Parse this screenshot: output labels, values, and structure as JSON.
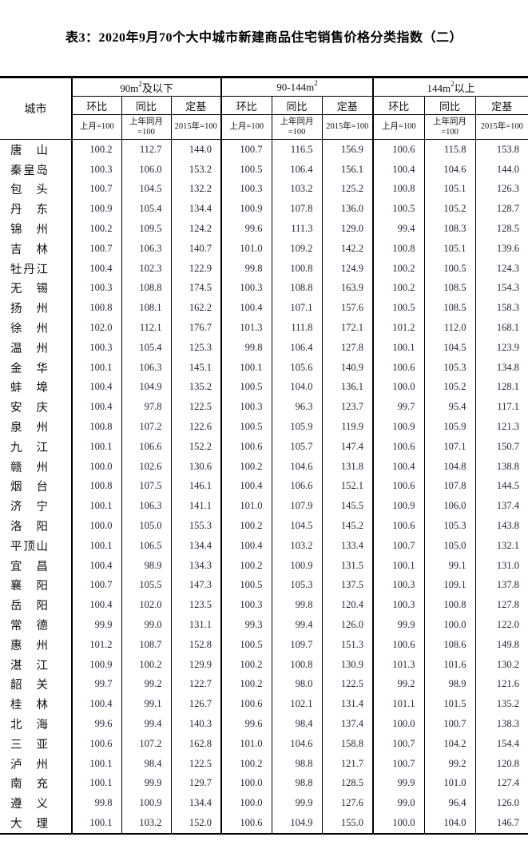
{
  "page": {
    "title": "表3：2020年9月70个大中城市新建商品住宅销售价格分类指数（二）"
  },
  "table": {
    "corner_header": "城市",
    "groups": [
      {
        "pre": "90m",
        "sup": "2",
        "post": "及以下"
      },
      {
        "pre": "90-144m",
        "sup": "2",
        "post": ""
      },
      {
        "pre": "144m",
        "sup": "2",
        "post": "以上"
      }
    ],
    "sub_headers": [
      {
        "kind": "环比",
        "base_l1": "上月=100",
        "base_l2": ""
      },
      {
        "kind": "同比",
        "base_l1": "上年同月",
        "base_l2": "=100"
      },
      {
        "kind": "定基",
        "base_l1": "2015年=100",
        "base_l2": ""
      }
    ],
    "rows": [
      {
        "city": "唐山",
        "values": [
          "100.2",
          "112.7",
          "144.0",
          "100.7",
          "116.5",
          "156.9",
          "100.6",
          "115.8",
          "153.8"
        ]
      },
      {
        "city": "秦皇岛",
        "values": [
          "100.3",
          "106.0",
          "153.2",
          "100.5",
          "106.4",
          "156.1",
          "100.4",
          "104.6",
          "144.0"
        ]
      },
      {
        "city": "包头",
        "values": [
          "100.7",
          "104.5",
          "132.2",
          "100.3",
          "103.2",
          "125.2",
          "100.8",
          "105.1",
          "126.3"
        ]
      },
      {
        "city": "丹东",
        "values": [
          "100.9",
          "105.4",
          "134.4",
          "100.9",
          "107.8",
          "136.0",
          "100.5",
          "105.2",
          "128.7"
        ]
      },
      {
        "city": "锦州",
        "values": [
          "100.2",
          "109.5",
          "124.2",
          "99.6",
          "111.3",
          "129.0",
          "99.4",
          "108.3",
          "128.5"
        ]
      },
      {
        "city": "吉林",
        "values": [
          "100.7",
          "106.3",
          "140.7",
          "101.0",
          "109.2",
          "142.2",
          "100.8",
          "105.1",
          "139.6"
        ]
      },
      {
        "city": "牡丹江",
        "values": [
          "100.4",
          "102.3",
          "122.9",
          "99.8",
          "100.8",
          "124.9",
          "100.2",
          "100.5",
          "124.3"
        ]
      },
      {
        "city": "无锡",
        "values": [
          "100.3",
          "108.8",
          "174.5",
          "100.3",
          "108.8",
          "163.9",
          "100.2",
          "108.5",
          "154.3"
        ]
      },
      {
        "city": "扬州",
        "values": [
          "100.8",
          "108.1",
          "162.2",
          "100.4",
          "107.1",
          "157.6",
          "100.5",
          "108.5",
          "158.3"
        ]
      },
      {
        "city": "徐州",
        "values": [
          "102.0",
          "112.1",
          "176.7",
          "101.3",
          "111.8",
          "172.1",
          "101.2",
          "112.0",
          "168.1"
        ]
      },
      {
        "city": "温州",
        "values": [
          "100.3",
          "105.4",
          "125.3",
          "99.8",
          "106.4",
          "127.8",
          "100.1",
          "104.5",
          "123.9"
        ]
      },
      {
        "city": "金华",
        "values": [
          "100.1",
          "106.3",
          "145.1",
          "100.1",
          "105.6",
          "140.9",
          "100.6",
          "105.3",
          "134.8"
        ]
      },
      {
        "city": "蚌埠",
        "values": [
          "100.4",
          "104.9",
          "135.2",
          "100.5",
          "104.0",
          "136.1",
          "100.0",
          "105.2",
          "128.1"
        ]
      },
      {
        "city": "安庆",
        "values": [
          "100.4",
          "97.8",
          "122.5",
          "100.3",
          "96.3",
          "123.7",
          "99.7",
          "95.4",
          "117.1"
        ]
      },
      {
        "city": "泉州",
        "values": [
          "100.8",
          "107.2",
          "122.6",
          "100.5",
          "105.9",
          "119.9",
          "100.9",
          "105.9",
          "121.3"
        ]
      },
      {
        "city": "九江",
        "values": [
          "100.1",
          "106.6",
          "152.2",
          "100.6",
          "105.7",
          "147.4",
          "100.6",
          "107.1",
          "150.7"
        ]
      },
      {
        "city": "赣州",
        "values": [
          "100.0",
          "102.6",
          "130.6",
          "100.2",
          "104.6",
          "131.8",
          "100.4",
          "104.8",
          "138.8"
        ]
      },
      {
        "city": "烟台",
        "values": [
          "100.8",
          "107.5",
          "146.1",
          "100.4",
          "106.6",
          "152.1",
          "100.6",
          "107.8",
          "144.5"
        ]
      },
      {
        "city": "济宁",
        "values": [
          "100.1",
          "106.3",
          "141.1",
          "101.0",
          "107.9",
          "145.5",
          "100.9",
          "106.0",
          "137.4"
        ]
      },
      {
        "city": "洛阳",
        "values": [
          "100.0",
          "105.0",
          "155.3",
          "100.2",
          "104.5",
          "145.2",
          "100.6",
          "105.3",
          "143.8"
        ]
      },
      {
        "city": "平顶山",
        "values": [
          "100.1",
          "106.5",
          "134.4",
          "100.4",
          "103.2",
          "133.4",
          "100.7",
          "105.0",
          "132.1"
        ]
      },
      {
        "city": "宜昌",
        "values": [
          "100.4",
          "98.9",
          "134.3",
          "100.2",
          "100.9",
          "131.5",
          "100.1",
          "99.1",
          "131.0"
        ]
      },
      {
        "city": "襄阳",
        "values": [
          "100.7",
          "105.5",
          "147.3",
          "100.5",
          "105.3",
          "137.5",
          "100.3",
          "109.1",
          "137.8"
        ]
      },
      {
        "city": "岳阳",
        "values": [
          "100.4",
          "102.0",
          "123.5",
          "100.3",
          "99.8",
          "120.4",
          "100.3",
          "100.8",
          "127.8"
        ]
      },
      {
        "city": "常德",
        "values": [
          "99.9",
          "99.0",
          "131.1",
          "99.3",
          "99.4",
          "126.0",
          "99.9",
          "100.0",
          "122.0"
        ]
      },
      {
        "city": "惠州",
        "values": [
          "101.2",
          "108.7",
          "152.8",
          "100.5",
          "109.7",
          "151.3",
          "100.6",
          "108.6",
          "149.8"
        ]
      },
      {
        "city": "湛江",
        "values": [
          "100.9",
          "100.2",
          "129.9",
          "100.2",
          "100.8",
          "130.9",
          "101.3",
          "101.6",
          "130.2"
        ]
      },
      {
        "city": "韶关",
        "values": [
          "99.7",
          "99.2",
          "122.7",
          "100.2",
          "98.0",
          "122.5",
          "99.2",
          "98.9",
          "121.6"
        ]
      },
      {
        "city": "桂林",
        "values": [
          "100.4",
          "99.1",
          "126.7",
          "100.6",
          "102.1",
          "131.4",
          "101.1",
          "101.5",
          "135.2"
        ]
      },
      {
        "city": "北海",
        "values": [
          "99.6",
          "99.4",
          "140.3",
          "99.6",
          "98.4",
          "137.4",
          "100.0",
          "100.7",
          "138.3"
        ]
      },
      {
        "city": "三亚",
        "values": [
          "100.6",
          "107.2",
          "162.8",
          "101.0",
          "104.6",
          "158.8",
          "100.7",
          "104.2",
          "154.4"
        ]
      },
      {
        "city": "泸州",
        "values": [
          "100.1",
          "98.4",
          "122.5",
          "100.2",
          "98.8",
          "121.7",
          "100.7",
          "99.2",
          "120.8"
        ]
      },
      {
        "city": "南充",
        "values": [
          "100.1",
          "99.9",
          "129.7",
          "100.0",
          "98.8",
          "128.5",
          "99.9",
          "101.0",
          "127.4"
        ]
      },
      {
        "city": "遵义",
        "values": [
          "99.8",
          "100.9",
          "134.4",
          "100.0",
          "99.9",
          "127.6",
          "99.0",
          "96.4",
          "126.0"
        ]
      },
      {
        "city": "大理",
        "values": [
          "100.1",
          "103.2",
          "152.0",
          "100.6",
          "104.9",
          "155.0",
          "100.0",
          "104.0",
          "146.7"
        ]
      }
    ]
  }
}
